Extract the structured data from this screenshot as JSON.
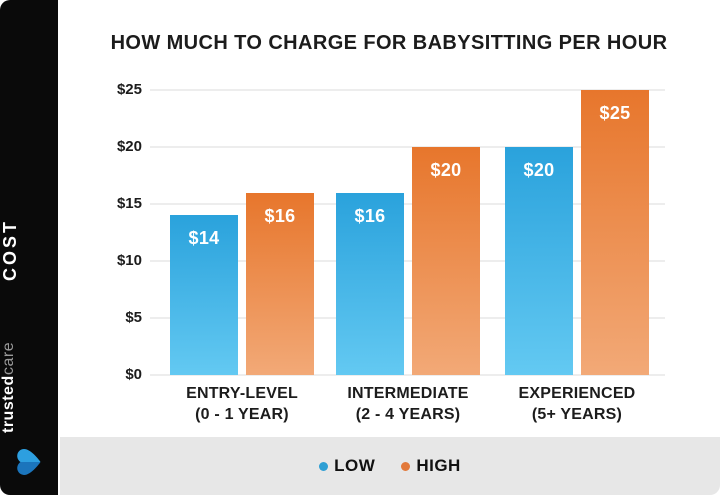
{
  "sidebar": {
    "vertical_label": "COST",
    "brand": {
      "bold": "trusted",
      "light": "care"
    },
    "heart_color_dark": "#1b75bc",
    "heart_color_light": "#2d9fe0"
  },
  "chart_data": {
    "type": "bar",
    "title": "HOW MUCH TO CHARGE FOR BABYSITTING PER HOUR",
    "categories": [
      {
        "label": "ENTRY-LEVEL",
        "sublabel": "(0 - 1 YEAR)"
      },
      {
        "label": "INTERMEDIATE",
        "sublabel": "(2 - 4 YEARS)"
      },
      {
        "label": "EXPERIENCED",
        "sublabel": "(5+ YEARS)"
      }
    ],
    "series": [
      {
        "name": "LOW",
        "values": [
          14,
          16,
          20
        ],
        "value_labels": [
          "$14",
          "$16",
          "$20"
        ],
        "color_top": "#2aa2dc",
        "color_bottom": "#63c9f2"
      },
      {
        "name": "HIGH",
        "values": [
          16,
          20,
          25
        ],
        "value_labels": [
          "$16",
          "$20",
          "$25"
        ],
        "color_top": "#e7762c",
        "color_bottom": "#f2a977"
      }
    ],
    "yticks": [
      "$25",
      "$20",
      "$15",
      "$10",
      "$5",
      "$0"
    ],
    "ylim": [
      0,
      25
    ],
    "grid": true,
    "legend_position": "bottom"
  },
  "legend": {
    "items": [
      {
        "label": "LOW",
        "color": "#2e9fd4"
      },
      {
        "label": "HIGH",
        "color": "#e2793a"
      }
    ]
  }
}
